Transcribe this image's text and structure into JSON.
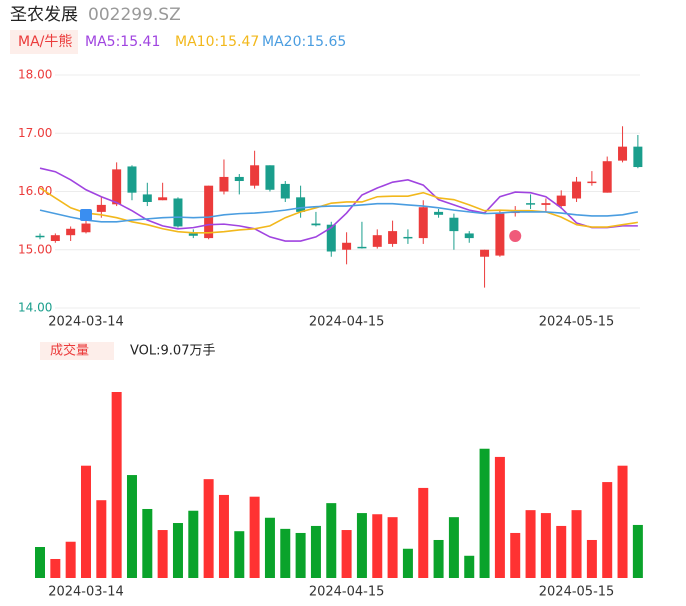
{
  "chart_data": [
    {
      "type": "candlestick",
      "title": "圣农发展",
      "subtitle": "002299.SZ",
      "indicator_label": "MA/牛熊",
      "categories": [
        null,
        null,
        null,
        "2024-03-14",
        null,
        null,
        null,
        null,
        null,
        null,
        null,
        null,
        null,
        null,
        null,
        null,
        null,
        null,
        null,
        null,
        "2024-04-15",
        null,
        null,
        null,
        null,
        null,
        null,
        null,
        null,
        null,
        null,
        null,
        null,
        null,
        null,
        "2024-05-15",
        null,
        null,
        null,
        null
      ],
      "open": [
        15.24,
        15.15,
        15.25,
        15.3,
        15.65,
        15.78,
        16.43,
        15.95,
        15.85,
        15.88,
        15.28,
        15.2,
        16.0,
        16.25,
        16.1,
        16.45,
        16.13,
        15.9,
        15.45,
        15.43,
        15.0,
        15.05,
        15.05,
        15.1,
        15.22,
        15.2,
        15.65,
        15.55,
        15.28,
        14.88,
        14.9,
        15.63,
        15.8,
        15.77,
        15.75,
        15.88,
        16.15,
        15.98,
        16.53,
        16.77
      ],
      "high": [
        15.28,
        15.28,
        15.4,
        15.6,
        15.9,
        16.5,
        16.45,
        16.15,
        16.15,
        15.9,
        15.35,
        16.1,
        16.55,
        16.3,
        16.7,
        16.45,
        16.18,
        16.1,
        15.65,
        15.48,
        15.3,
        15.48,
        15.35,
        15.5,
        15.35,
        15.85,
        15.7,
        15.62,
        15.32,
        15.0,
        15.68,
        15.75,
        15.95,
        15.88,
        16.02,
        16.25,
        16.35,
        16.6,
        17.12,
        16.97
      ],
      "low": [
        15.18,
        15.12,
        15.15,
        15.28,
        15.55,
        15.75,
        15.85,
        15.75,
        15.85,
        15.38,
        15.2,
        15.18,
        15.95,
        15.95,
        16.05,
        16.0,
        15.82,
        15.55,
        15.4,
        14.88,
        14.75,
        15.02,
        15.02,
        15.05,
        15.1,
        15.1,
        15.55,
        15.0,
        15.12,
        14.35,
        14.88,
        15.57,
        15.7,
        15.65,
        15.7,
        15.82,
        16.1,
        15.98,
        16.5,
        16.4
      ],
      "close": [
        15.22,
        15.25,
        15.36,
        15.45,
        15.77,
        16.38,
        15.98,
        15.82,
        15.9,
        15.4,
        15.24,
        16.1,
        16.25,
        16.18,
        16.45,
        16.03,
        15.88,
        15.65,
        15.42,
        14.97,
        15.12,
        15.03,
        15.25,
        15.32,
        15.2,
        15.73,
        15.6,
        15.32,
        15.2,
        15.0,
        15.62,
        15.66,
        15.78,
        15.8,
        15.93,
        16.17,
        16.17,
        16.52,
        16.77,
        16.42
      ],
      "up_color": "#eb3b3b",
      "down_color": "#1a9e8c",
      "series": [
        {
          "name": "MA5:15.41",
          "color": "#a044e0",
          "values": [
            16.4,
            16.34,
            16.2,
            16.03,
            15.91,
            15.81,
            15.67,
            15.51,
            15.41,
            15.36,
            15.38,
            15.43,
            15.44,
            15.41,
            15.36,
            15.22,
            15.15,
            15.15,
            15.22,
            15.38,
            15.63,
            15.94,
            16.06,
            16.16,
            16.2,
            16.11,
            15.86,
            15.77,
            15.68,
            15.63,
            15.91,
            15.99,
            15.98,
            15.91,
            15.72,
            15.46,
            15.38,
            15.38,
            15.41,
            15.41
          ]
        },
        {
          "name": "MA10:15.47",
          "color": "#f2b81c",
          "values": [
            16.06,
            15.89,
            15.72,
            15.63,
            15.6,
            15.55,
            15.48,
            15.43,
            15.36,
            15.31,
            15.29,
            15.29,
            15.31,
            15.34,
            15.36,
            15.41,
            15.55,
            15.65,
            15.72,
            15.8,
            15.82,
            15.82,
            15.91,
            15.92,
            15.92,
            15.98,
            15.89,
            15.86,
            15.77,
            15.67,
            15.68,
            15.67,
            15.67,
            15.65,
            15.56,
            15.43,
            15.39,
            15.39,
            15.43,
            15.47
          ]
        },
        {
          "name": "MA20:15.65",
          "color": "#4a9de0",
          "values": [
            15.68,
            15.62,
            15.56,
            15.51,
            15.48,
            15.48,
            15.51,
            15.53,
            15.55,
            15.56,
            15.55,
            15.56,
            15.6,
            15.62,
            15.63,
            15.65,
            15.68,
            15.72,
            15.74,
            15.75,
            15.75,
            15.77,
            15.79,
            15.79,
            15.77,
            15.75,
            15.72,
            15.68,
            15.65,
            15.62,
            15.63,
            15.65,
            15.65,
            15.65,
            15.63,
            15.6,
            15.58,
            15.58,
            15.6,
            15.65
          ]
        }
      ],
      "ylim": [
        14,
        18
      ],
      "yticks": [
        {
          "value": 18,
          "label": "18.00"
        },
        {
          "value": 17,
          "label": "17.00"
        },
        {
          "value": 16,
          "label": "16.00"
        },
        {
          "value": 15,
          "label": "15.00"
        },
        {
          "value": 14,
          "label": "14.00"
        }
      ],
      "ytick_colors": [
        "#eb3b3b",
        "#eb3b3b",
        "#eb3b3b",
        "#eb3b3b",
        "#1a9e8c"
      ],
      "grid": true
    },
    {
      "type": "bar",
      "title": "成交量",
      "subtitle": "VOL:9.07万手",
      "categories": [
        null,
        null,
        null,
        "2024-03-14",
        null,
        null,
        null,
        null,
        null,
        null,
        null,
        null,
        null,
        null,
        null,
        null,
        null,
        null,
        null,
        null,
        "2024-04-15",
        null,
        null,
        null,
        null,
        null,
        null,
        null,
        null,
        null,
        null,
        null,
        null,
        null,
        null,
        "2024-05-15",
        null,
        null,
        null,
        null
      ],
      "values": [
        5.3,
        3.25,
        6.2,
        19.2,
        13.3,
        31.8,
        17.6,
        11.8,
        8.2,
        9.4,
        11.5,
        16.9,
        14.2,
        8.0,
        13.9,
        10.3,
        8.4,
        7.7,
        8.9,
        12.8,
        8.2,
        11.1,
        10.9,
        10.4,
        5.0,
        15.4,
        6.5,
        10.4,
        3.8,
        22.1,
        20.7,
        7.7,
        11.6,
        11.1,
        8.9,
        11.6,
        6.5,
        16.4,
        19.2,
        9.07
      ],
      "colors": [
        "#0aa32b",
        "#ff3232",
        "#ff3232",
        "#ff3232",
        "#ff3232",
        "#ff3232",
        "#0aa32b",
        "#0aa32b",
        "#ff3232",
        "#0aa32b",
        "#0aa32b",
        "#ff3232",
        "#ff3232",
        "#0aa32b",
        "#ff3232",
        "#0aa32b",
        "#0aa32b",
        "#0aa32b",
        "#0aa32b",
        "#0aa32b",
        "#ff3232",
        "#0aa32b",
        "#ff3232",
        "#ff3232",
        "#0aa32b",
        "#ff3232",
        "#0aa32b",
        "#0aa32b",
        "#0aa32b",
        "#0aa32b",
        "#ff3232",
        "#ff3232",
        "#ff3232",
        "#ff3232",
        "#ff3232",
        "#ff3232",
        "#ff3232",
        "#ff3232",
        "#ff3232",
        "#0aa32b"
      ]
    }
  ]
}
